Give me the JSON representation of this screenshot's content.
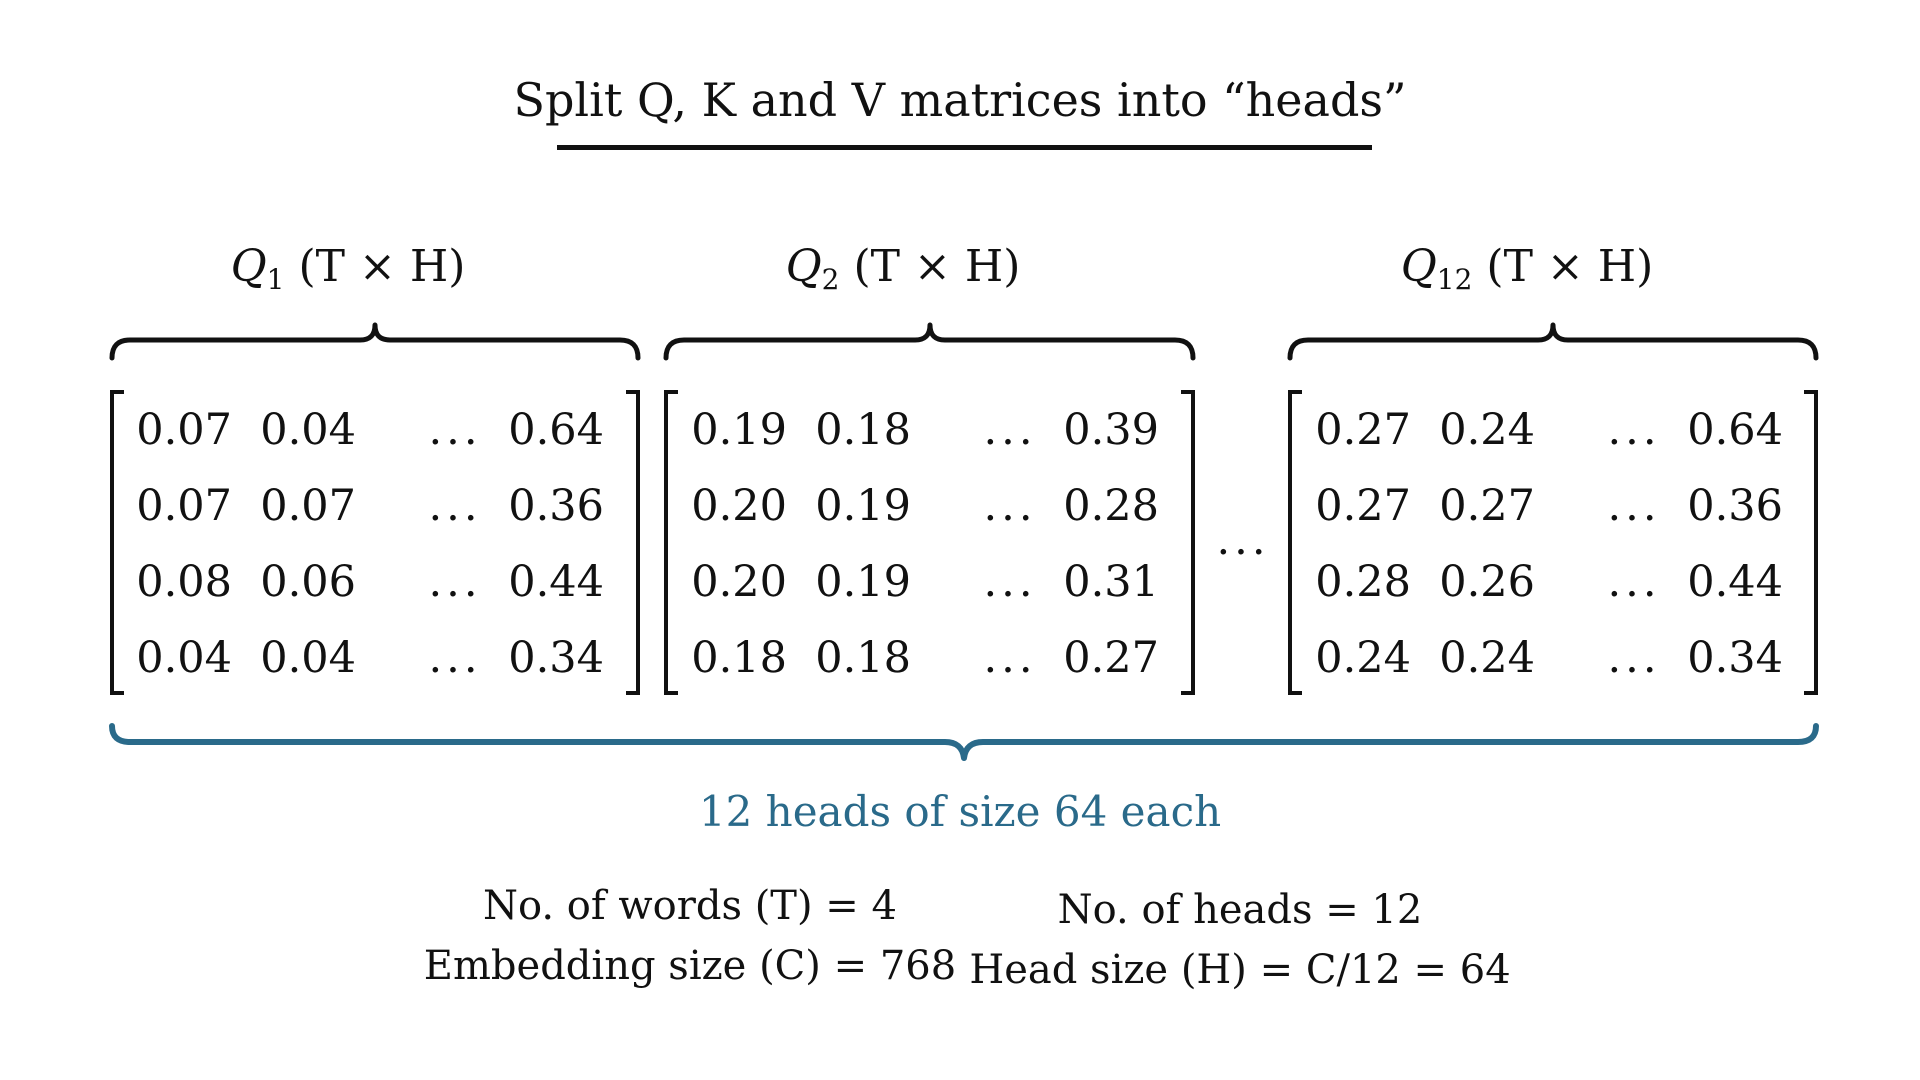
{
  "title": "Split Q, K and V matrices into “heads”",
  "colors": {
    "ink": "#111111",
    "accent": "#2a6a8a"
  },
  "heads": [
    {
      "symbol": "Q",
      "index": "1",
      "shape": "(T × H)",
      "rows": [
        [
          "0.07",
          "0.04",
          "0.64"
        ],
        [
          "0.07",
          "0.07",
          "0.36"
        ],
        [
          "0.08",
          "0.06",
          "0.44"
        ],
        [
          "0.04",
          "0.04",
          "0.34"
        ]
      ]
    },
    {
      "symbol": "Q",
      "index": "2",
      "shape": "(T × H)",
      "rows": [
        [
          "0.19",
          "0.18",
          "0.39"
        ],
        [
          "0.20",
          "0.19",
          "0.28"
        ],
        [
          "0.20",
          "0.19",
          "0.31"
        ],
        [
          "0.18",
          "0.18",
          "0.27"
        ]
      ]
    },
    {
      "symbol": "Q",
      "index": "12",
      "shape": "(T × H)",
      "rows": [
        [
          "0.27",
          "0.24",
          "0.64"
        ],
        [
          "0.27",
          "0.27",
          "0.36"
        ],
        [
          "0.28",
          "0.26",
          "0.44"
        ],
        [
          "0.24",
          "0.24",
          "0.34"
        ]
      ]
    }
  ],
  "ellipsis": "...",
  "between_heads": "...",
  "summary": "12 heads of size 64 each",
  "facts_left": [
    "No. of words (T) = 4",
    "Embedding size (C) = 768"
  ],
  "facts_right": [
    "No. of heads = 12",
    "Head size (H) = C/12 = 64"
  ]
}
